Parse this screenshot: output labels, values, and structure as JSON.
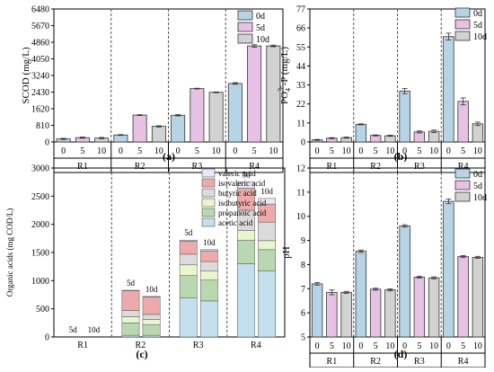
{
  "figure": {
    "panels": [
      "(a)",
      "(b)",
      "(c)",
      "(d)"
    ]
  },
  "colors": {
    "d0": "#b7d4e6",
    "d5": "#e6c1e3",
    "d10": "#d2d2d2",
    "valeric": "#e7e7f7",
    "isovaleric": "#ecaaaa",
    "butyric": "#dbdbdb",
    "isobutyric": "#e9f6cc",
    "propanoic": "#b9d8b2",
    "acetic": "#c4e0ef",
    "base": "#b38a70"
  },
  "chart_data": [
    {
      "type": "bar",
      "panel": "(a)",
      "ylabel": "SCOD (mg/L)",
      "ylim": [
        0,
        6480
      ],
      "yticks": [
        "0",
        "810",
        "1620",
        "2430",
        "3240",
        "4050",
        "4860",
        "5670",
        "6480"
      ],
      "groups": [
        "R1",
        "R2",
        "R3",
        "R4"
      ],
      "sub_x": [
        "0",
        "5",
        "10"
      ],
      "legend": [
        "0d",
        "5d",
        "10d"
      ],
      "series": [
        {
          "name": "0d",
          "values": [
            150,
            340,
            1300,
            2850
          ]
        },
        {
          "name": "5d",
          "values": [
            210,
            1310,
            2600,
            4680
          ]
        },
        {
          "name": "10d",
          "values": [
            190,
            760,
            2420,
            4680
          ]
        }
      ],
      "errors": [
        [
          30,
          20,
          30,
          40
        ],
        [
          30,
          20,
          20,
          60
        ],
        [
          30,
          30,
          20,
          40
        ]
      ]
    },
    {
      "type": "bar",
      "panel": "(b)",
      "ylabel": "PO4 3- -P (mg/L)",
      "ylabel_parts": {
        "main": "PO",
        "sub": "4",
        "sup": "3-",
        "rest": "-P (mg/L)"
      },
      "ylim": [
        0,
        77
      ],
      "yticks": [
        "0",
        "11",
        "22",
        "33",
        "44",
        "55",
        "66",
        "77"
      ],
      "groups": [
        "R1",
        "R2",
        "R3",
        "R4"
      ],
      "sub_x": [
        "0",
        "5",
        "10"
      ],
      "legend": [
        "0d",
        "5d",
        "10d"
      ],
      "series": [
        {
          "name": "0d",
          "values": [
            1.2,
            10.2,
            29.5,
            61
          ]
        },
        {
          "name": "5d",
          "values": [
            2.2,
            3.8,
            5.8,
            23.5
          ]
        },
        {
          "name": "10d",
          "values": [
            2.5,
            3.6,
            6.2,
            10.5
          ]
        }
      ],
      "errors": [
        [
          0.3,
          0.3,
          1.5,
          2.0
        ],
        [
          0.3,
          0.3,
          0.6,
          2.0
        ],
        [
          0.3,
          0.3,
          0.7,
          1.0
        ]
      ]
    },
    {
      "type": "stacked-bar",
      "panel": "(c)",
      "ylabel": "Organic acids (mg COD/L)",
      "ylim": [
        0,
        3000
      ],
      "yticks": [
        "0",
        "500",
        "1000",
        "1500",
        "2000",
        "2500",
        "3000"
      ],
      "groups": [
        "R1",
        "R2",
        "R3",
        "R4"
      ],
      "bar_labels": [
        "5d",
        "10d"
      ],
      "legend": [
        "valeric acid",
        "isovaleric acid",
        "butyric acid",
        "isobutyric acid",
        "propanoic acid",
        "acetic acid"
      ],
      "bars": [
        {
          "group": "R1",
          "label": "5d",
          "total": 0,
          "stack": {
            "acetic": 0,
            "propanoic": 0,
            "isobutyric": 0,
            "butyric": 0,
            "isovaleric": 0,
            "valeric": 0
          }
        },
        {
          "group": "R1",
          "label": "10d",
          "total": 0,
          "stack": {
            "acetic": 0,
            "propanoic": 0,
            "isobutyric": 0,
            "butyric": 0,
            "isovaleric": 0,
            "valeric": 0
          }
        },
        {
          "group": "R2",
          "label": "5d",
          "total": 830,
          "stack": {
            "acetic": 30,
            "propanoic": 220,
            "isobutyric": 110,
            "butyric": 110,
            "isovaleric": 350,
            "valeric": 10
          }
        },
        {
          "group": "R2",
          "label": "10d",
          "total": 720,
          "stack": {
            "acetic": 30,
            "propanoic": 190,
            "isobutyric": 90,
            "butyric": 90,
            "isovaleric": 310,
            "valeric": 10
          }
        },
        {
          "group": "R3",
          "label": "5d",
          "total": 1720,
          "stack": {
            "acetic": 690,
            "propanoic": 400,
            "isobutyric": 190,
            "butyric": 190,
            "isovaleric": 230,
            "valeric": 20
          }
        },
        {
          "group": "R3",
          "label": "10d",
          "total": 1550,
          "stack": {
            "acetic": 640,
            "propanoic": 370,
            "isobutyric": 160,
            "butyric": 170,
            "isovaleric": 190,
            "valeric": 20
          }
        },
        {
          "group": "R4",
          "label": "5d",
          "total": 2750,
          "stack": {
            "acetic": 1300,
            "propanoic": 420,
            "isobutyric": 170,
            "butyric": 360,
            "isovaleric": 390,
            "valeric": 110
          }
        },
        {
          "group": "R4",
          "label": "10d",
          "total": 2460,
          "stack": {
            "acetic": 1170,
            "propanoic": 380,
            "isobutyric": 160,
            "butyric": 330,
            "isovaleric": 320,
            "valeric": 100
          }
        }
      ]
    },
    {
      "type": "bar",
      "panel": "(d)",
      "ylabel": "pH",
      "ylim": [
        5,
        12
      ],
      "yticks": [
        "5",
        "6",
        "7",
        "8",
        "9",
        "10",
        "11",
        "12"
      ],
      "groups": [
        "R1",
        "R2",
        "R3",
        "R4"
      ],
      "sub_x": [
        "0",
        "5",
        "10"
      ],
      "legend": [
        "0d",
        "5d",
        "10d"
      ],
      "series": [
        {
          "name": "0d",
          "values": [
            7.2,
            8.55,
            9.6,
            10.62
          ]
        },
        {
          "name": "5d",
          "values": [
            6.85,
            6.98,
            7.48,
            8.33
          ]
        },
        {
          "name": "10d",
          "values": [
            6.85,
            6.95,
            7.45,
            8.3
          ]
        }
      ],
      "errors": [
        [
          0.05,
          0.05,
          0.05,
          0.1
        ],
        [
          0.1,
          0.04,
          0.04,
          0.04
        ],
        [
          0.04,
          0.04,
          0.04,
          0.04
        ]
      ]
    }
  ]
}
